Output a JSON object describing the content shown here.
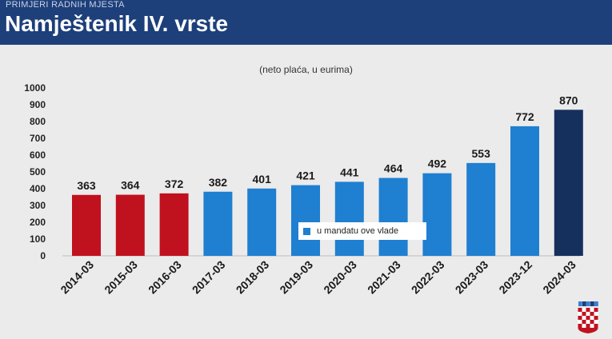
{
  "header": {
    "supertitle": "PRIMJERI RADNIH MJESTA",
    "title": "Namještenik IV. vrste"
  },
  "chart_data": {
    "type": "bar",
    "subtitle": "(neto plaća, u eurima)",
    "categories": [
      "2014-03",
      "2015-03",
      "2016-03",
      "2017-03",
      "2018-03",
      "2019-03",
      "2020-03",
      "2021-03",
      "2022-03",
      "2023-03",
      "2023-12",
      "2024-03"
    ],
    "values": [
      363,
      364,
      372,
      382,
      401,
      421,
      441,
      464,
      492,
      553,
      772,
      870
    ],
    "bar_colors": [
      "#c0111f",
      "#c0111f",
      "#c0111f",
      "#1f7fd1",
      "#1f7fd1",
      "#1f7fd1",
      "#1f7fd1",
      "#1f7fd1",
      "#1f7fd1",
      "#1f7fd1",
      "#1f7fd1",
      "#16305e"
    ],
    "ylim": [
      0,
      1000
    ],
    "yticks": [
      0,
      100,
      200,
      300,
      400,
      500,
      600,
      700,
      800,
      900,
      1000
    ],
    "grid": false,
    "legend": {
      "label": "u mandatu ove vlade",
      "color": "#1f7fd1",
      "position": "center"
    }
  },
  "crest": {
    "icon": "croatian-coat-of-arms-icon",
    "colors": [
      "#c0111f",
      "#ffffff"
    ]
  }
}
